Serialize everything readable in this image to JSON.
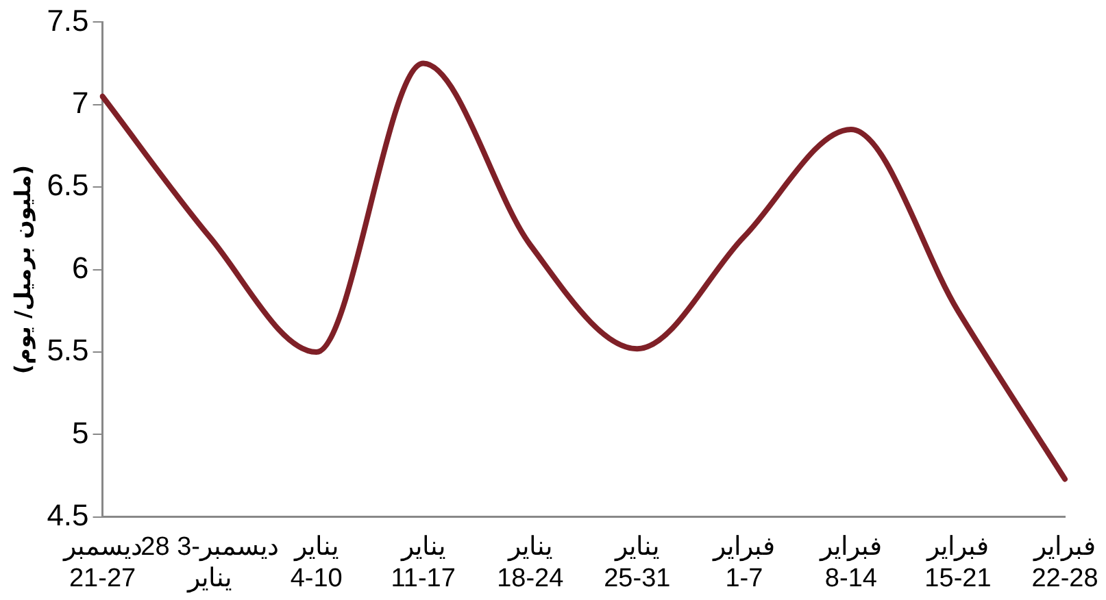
{
  "chart_data": {
    "type": "line",
    "ylabel": "(مليون برميل/ يوم)",
    "categories": [
      "ديسمبر 21-27",
      "28 ديسمبر-3 يناير",
      "يناير 4-10",
      "يناير 11-17",
      "يناير 18-24",
      "يناير 25-31",
      "فبراير 1-7",
      "فبراير 8-14",
      "فبراير 15-21",
      "فبراير 22-28"
    ],
    "series": [
      {
        "color": "#7f2027",
        "values": [
          7.05,
          6.2,
          5.5,
          7.25,
          6.15,
          5.52,
          6.2,
          6.85,
          5.75,
          4.73
        ]
      }
    ],
    "ylim": [
      4.5,
      7.5
    ],
    "yticks": [
      4.5,
      5,
      5.5,
      6,
      6.5,
      7,
      7.5
    ],
    "grid": false,
    "legend": false,
    "marker": "none",
    "line_style": "solid"
  }
}
